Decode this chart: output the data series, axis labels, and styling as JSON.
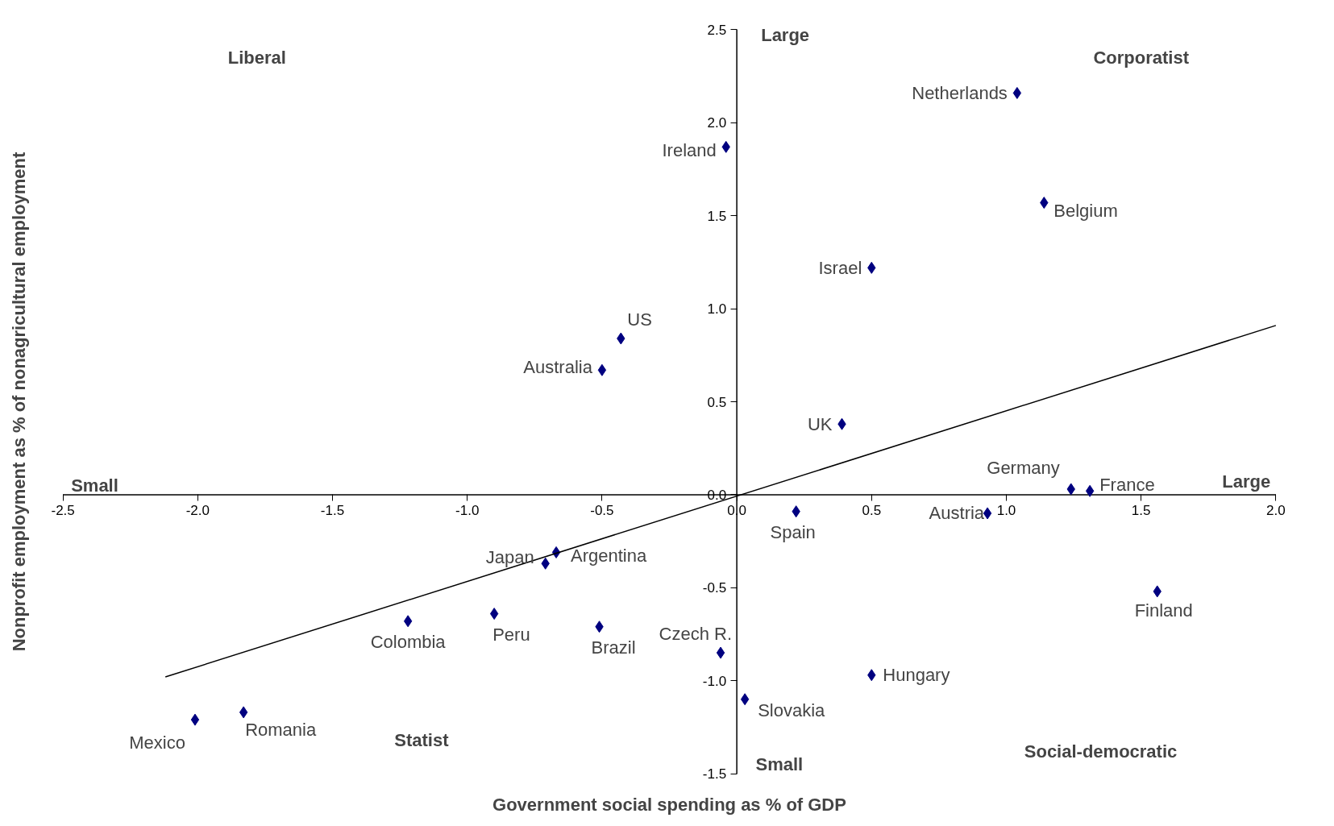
{
  "chart_data": {
    "type": "scatter",
    "xlabel": "Government social spending as % of GDP",
    "ylabel": "Nonprofit employment as % of nonagricultural employment",
    "xlim": [
      -2.5,
      2.0
    ],
    "ylim": [
      -1.5,
      2.5
    ],
    "xticks": [
      {
        "value": -2.5,
        "label": "-2.5"
      },
      {
        "value": -2.0,
        "label": "-2.0"
      },
      {
        "value": -1.5,
        "label": "-1.5"
      },
      {
        "value": -1.0,
        "label": "-1.0"
      },
      {
        "value": -0.5,
        "label": "-0.5"
      },
      {
        "value": 0,
        "label": "0.0"
      },
      {
        "value": 0.5,
        "label": "0.5"
      },
      {
        "value": 1.0,
        "label": "1.0"
      },
      {
        "value": 1.5,
        "label": "1.5"
      },
      {
        "value": 2.0,
        "label": "2.0"
      }
    ],
    "yticks": [
      {
        "value": -1.5,
        "label": "-1.5"
      },
      {
        "value": -1.0,
        "label": "-1.0"
      },
      {
        "value": -0.5,
        "label": "-0.5"
      },
      {
        "value": 0,
        "label": "0.0"
      },
      {
        "value": 0.5,
        "label": "0.5"
      },
      {
        "value": 1.0,
        "label": "1.0"
      },
      {
        "value": 1.5,
        "label": "1.5"
      },
      {
        "value": 2.0,
        "label": "2.0"
      },
      {
        "value": 2.5,
        "label": "2.5"
      }
    ],
    "grid": false,
    "marker": "diamond",
    "series": [
      {
        "color": "#000080",
        "x": [
          1.04,
          -0.04,
          1.14,
          0.5,
          -0.43,
          -0.5,
          0.39,
          1.24,
          1.31,
          0.22,
          0.93,
          -0.67,
          -0.71,
          -1.22,
          -0.9,
          -0.51,
          1.56,
          -0.06,
          0.5,
          0.03,
          -2.01,
          -1.83
        ],
        "values": [
          2.16,
          1.87,
          1.57,
          1.22,
          0.84,
          0.67,
          0.38,
          0.03,
          0.02,
          -0.09,
          -0.1,
          -0.31,
          -0.37,
          -0.68,
          -0.64,
          -0.71,
          -0.52,
          -0.85,
          -0.97,
          -1.1,
          -1.21,
          -1.17
        ]
      },
      {
        "type": "line",
        "color": "#000000",
        "line_style": "solid",
        "marker": "none",
        "x": [
          -2.12,
          2.0
        ],
        "values": [
          -0.98,
          0.91
        ]
      }
    ],
    "annotations": [
      "Liberal",
      "Corporatist",
      "Statist",
      "Social-democratic",
      "Large",
      "Small",
      "Small",
      "Large",
      {
        "text": "Netherlands",
        "x": 1.04,
        "y": 2.16
      },
      {
        "text": "Ireland",
        "x": -0.04,
        "y": 1.87
      },
      {
        "text": "Belgium",
        "x": 1.14,
        "y": 1.57
      },
      {
        "text": "Israel",
        "x": 0.5,
        "y": 1.22
      },
      {
        "text": "US",
        "x": -0.43,
        "y": 0.84
      },
      {
        "text": "Australia",
        "x": -0.5,
        "y": 0.67
      },
      {
        "text": "UK",
        "x": 0.39,
        "y": 0.38
      },
      {
        "text": "Germany",
        "x": 1.24,
        "y": 0.03
      },
      {
        "text": "France",
        "x": 1.31,
        "y": 0.02
      },
      {
        "text": "Spain",
        "x": 0.22,
        "y": -0.09
      },
      {
        "text": "Austria",
        "x": 0.93,
        "y": -0.1
      },
      {
        "text": "Argentina",
        "x": -0.67,
        "y": -0.31
      },
      {
        "text": "Japan",
        "x": -0.71,
        "y": -0.37
      },
      {
        "text": "Colombia",
        "x": -1.22,
        "y": -0.68
      },
      {
        "text": "Peru",
        "x": -0.9,
        "y": -0.64
      },
      {
        "text": "Brazil",
        "x": -0.51,
        "y": -0.71
      },
      {
        "text": "Finland",
        "x": 1.56,
        "y": -0.52
      },
      {
        "text": "Czech R.",
        "x": -0.06,
        "y": -0.85
      },
      {
        "text": "Hungary",
        "x": 0.5,
        "y": -0.97
      },
      {
        "text": "Slovakia",
        "x": 0.03,
        "y": -1.1
      },
      {
        "text": "Mexico",
        "x": -2.01,
        "y": -1.21
      },
      {
        "text": "Romania",
        "x": -1.83,
        "y": -1.17
      }
    ]
  }
}
